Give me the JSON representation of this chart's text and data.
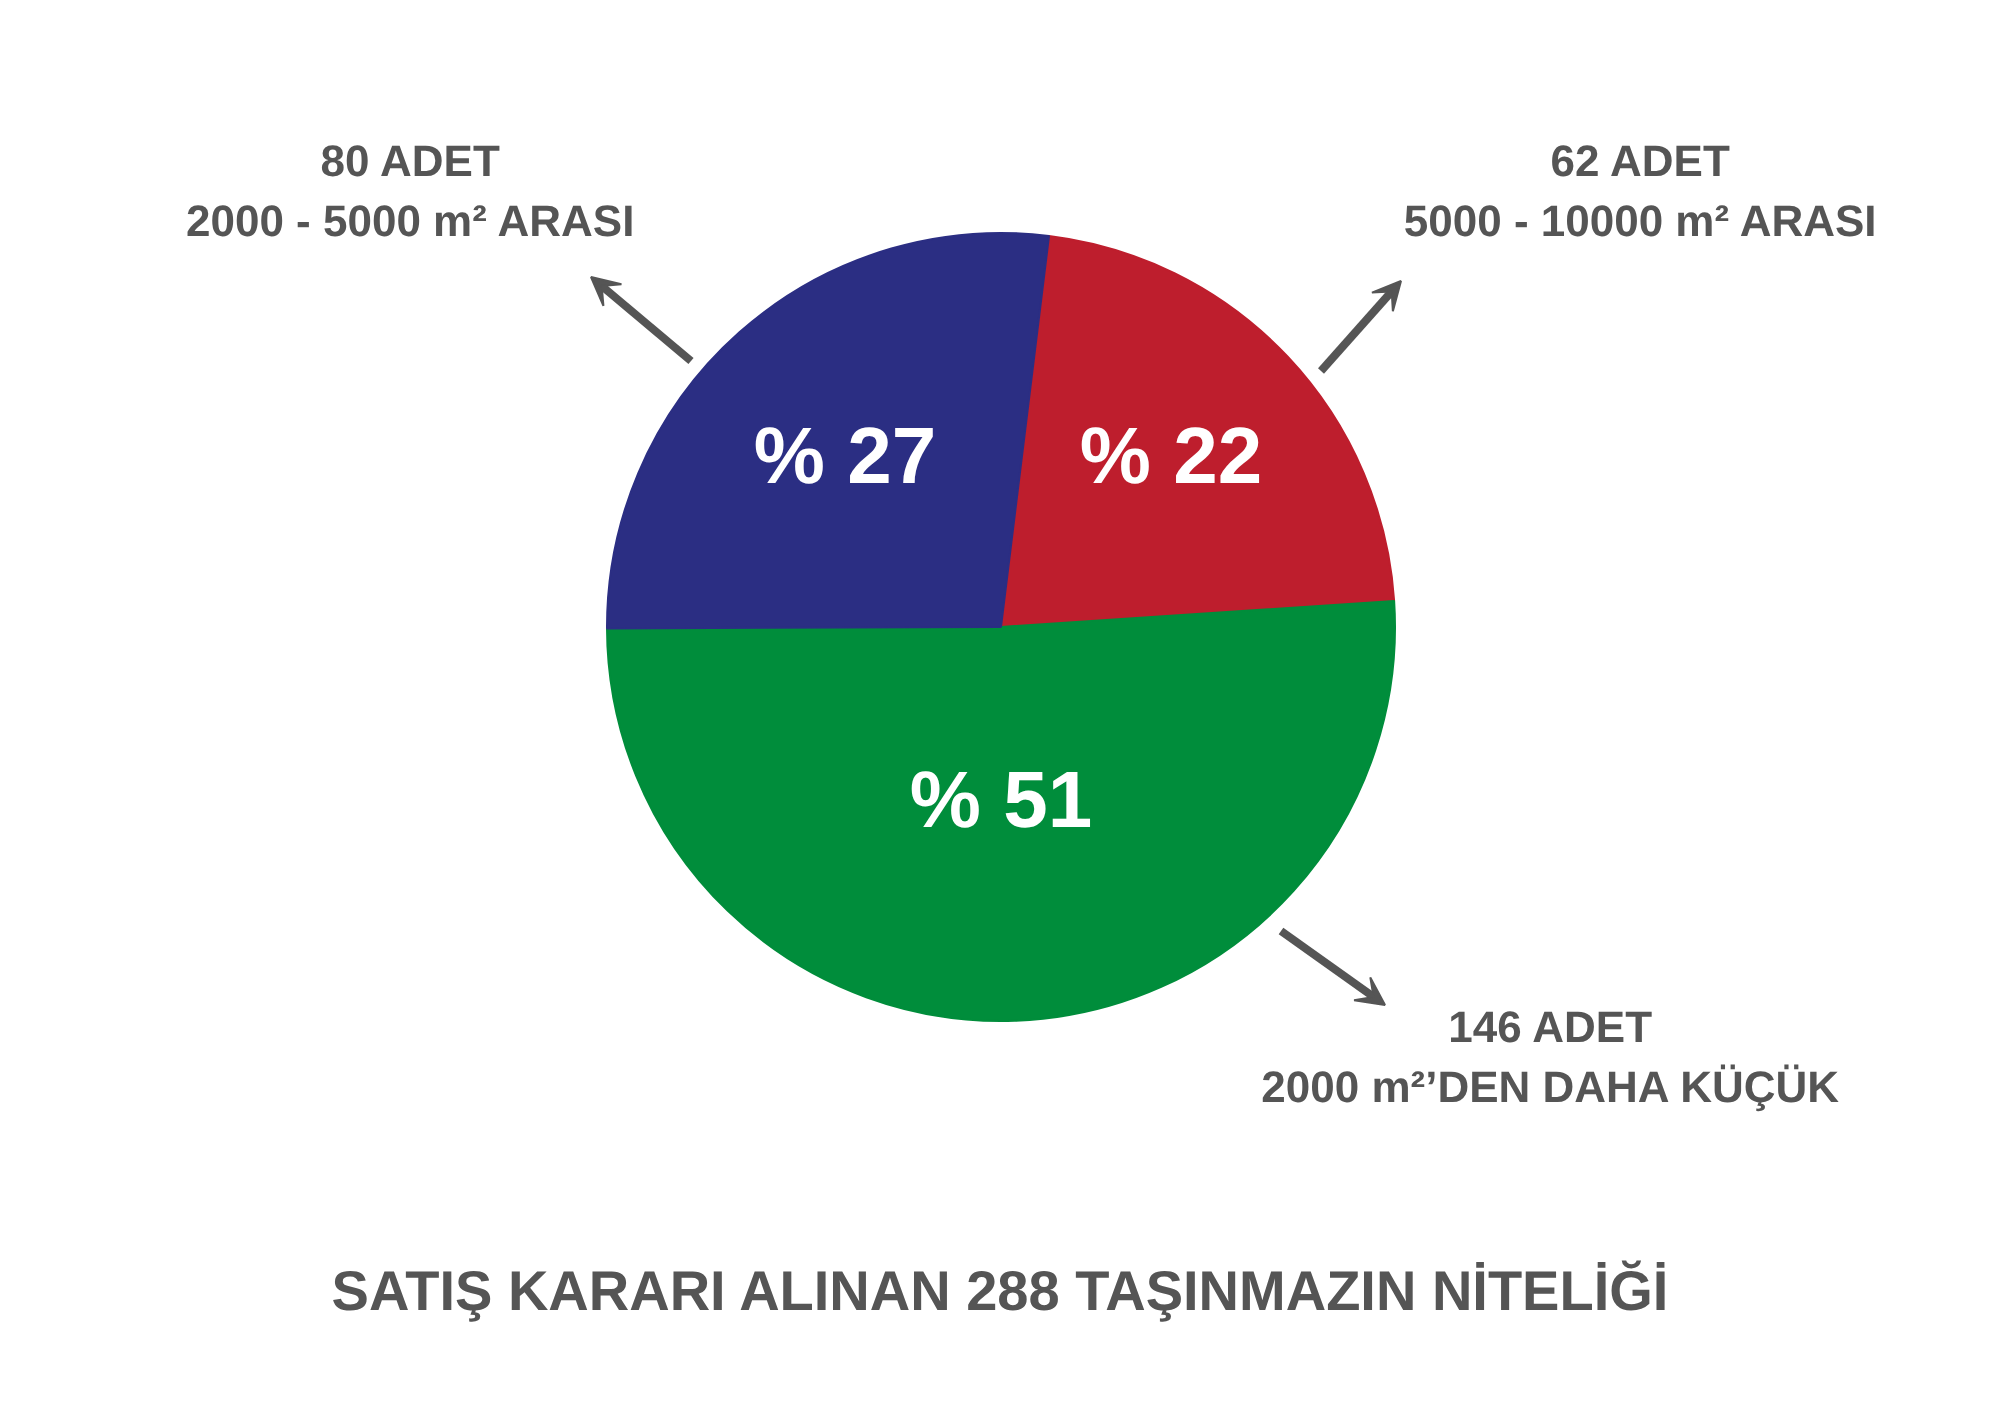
{
  "chart_data": {
    "type": "pie",
    "title": "SATIŞ KARARI ALINAN 288 TAŞINMAZIN NİTELİĞİ",
    "categories": [
      "62 ADET\n5000 - 10000 m² ARASI",
      "146 ADET\n2000 m²’DEN DAHA KÜÇÜK",
      "80 ADET\n2000 - 5000 m² ARASI"
    ],
    "values": [
      22,
      51,
      27
    ],
    "colors": [
      "#be1e2d",
      "#008d3b",
      "#2b2e83"
    ],
    "value_labels": [
      "% 22",
      "% 51",
      "% 27"
    ]
  }
}
